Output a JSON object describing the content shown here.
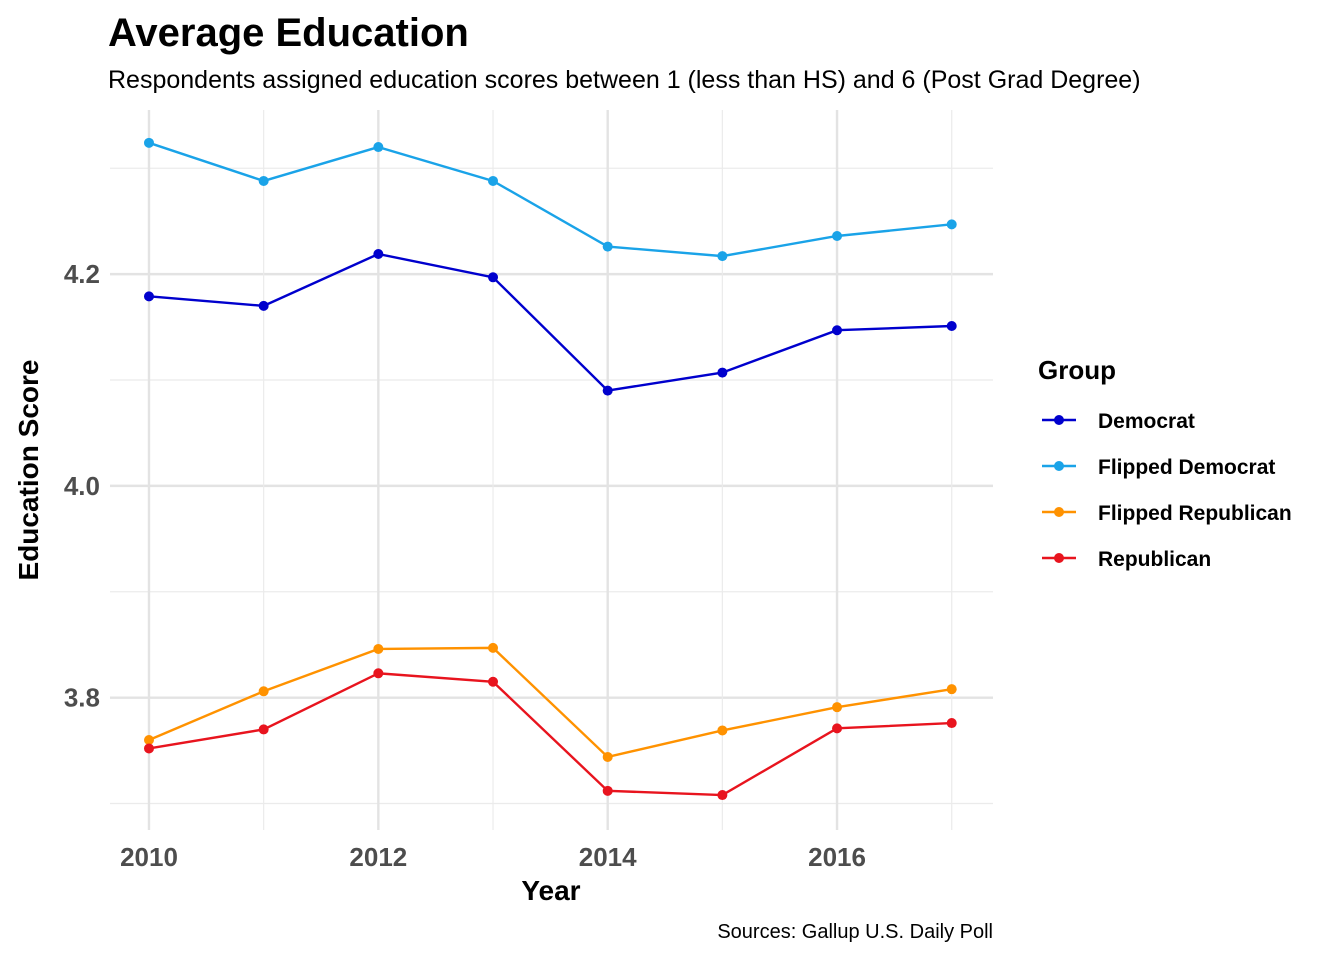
{
  "chart_data": {
    "type": "line",
    "title": "Average Education",
    "subtitle": "Respondents assigned education scores between 1 (less than HS) and 6 (Post Grad Degree)",
    "xlabel": "Year",
    "ylabel": "Education Score",
    "caption": "Sources: Gallup U.S. Daily Poll",
    "x": [
      2010,
      2011,
      2012,
      2013,
      2014,
      2015,
      2016,
      2017
    ],
    "xticks": [
      2010,
      2012,
      2014,
      2016
    ],
    "xtick_labels": [
      "2010",
      "2012",
      "2014",
      "2016"
    ],
    "yticks": [
      3.8,
      4.0,
      4.2
    ],
    "ytick_labels": [
      "3.8",
      "4.0",
      "4.2"
    ],
    "yminor": [
      3.7,
      3.9,
      4.1,
      4.3
    ],
    "xlim": [
      2009.66,
      2017.36
    ],
    "ylim": [
      3.675,
      4.355
    ],
    "grid": true,
    "legend": {
      "title": "Group",
      "position": "right"
    },
    "series": [
      {
        "name": "Democrat",
        "color": "#0000CD",
        "values": [
          4.179,
          4.17,
          4.219,
          4.197,
          4.09,
          4.107,
          4.147,
          4.151
        ]
      },
      {
        "name": "Flipped Democrat",
        "color": "#1AA3E8",
        "values": [
          4.324,
          4.288,
          4.32,
          4.288,
          4.226,
          4.217,
          4.236,
          4.247
        ]
      },
      {
        "name": "Flipped Republican",
        "color": "#FF9200",
        "values": [
          3.76,
          3.806,
          3.846,
          3.847,
          3.744,
          3.769,
          3.791,
          3.808
        ]
      },
      {
        "name": "Republican",
        "color": "#E8141E",
        "values": [
          3.752,
          3.77,
          3.823,
          3.815,
          3.712,
          3.708,
          3.771,
          3.776
        ]
      }
    ]
  }
}
